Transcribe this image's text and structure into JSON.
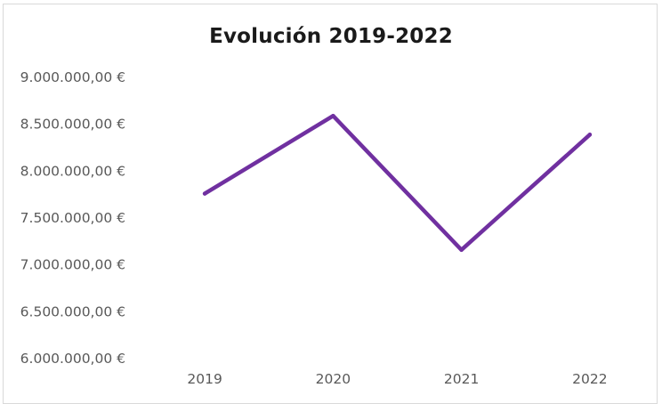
{
  "chart_data": {
    "type": "line",
    "title": "Evolución 2019-2022",
    "categories": [
      "2019",
      "2020",
      "2021",
      "2022"
    ],
    "series": [
      {
        "values": [
          7760000,
          8590000,
          7160000,
          8390000
        ]
      }
    ],
    "y_ticks": [
      "9.000.000,00 €",
      "8.500.000,00 €",
      "8.000.000,00 €",
      "7.500.000,00 €",
      "7.000.000,00 €",
      "6.500.000,00 €",
      "6.000.000,00 €"
    ],
    "y_tick_values": [
      9000000,
      8500000,
      8000000,
      7500000,
      7000000,
      6500000,
      6000000
    ],
    "ylim": [
      6000000,
      9000000
    ],
    "xlabel": "",
    "ylabel": "",
    "grid": false,
    "line_color": "#7030a0"
  }
}
